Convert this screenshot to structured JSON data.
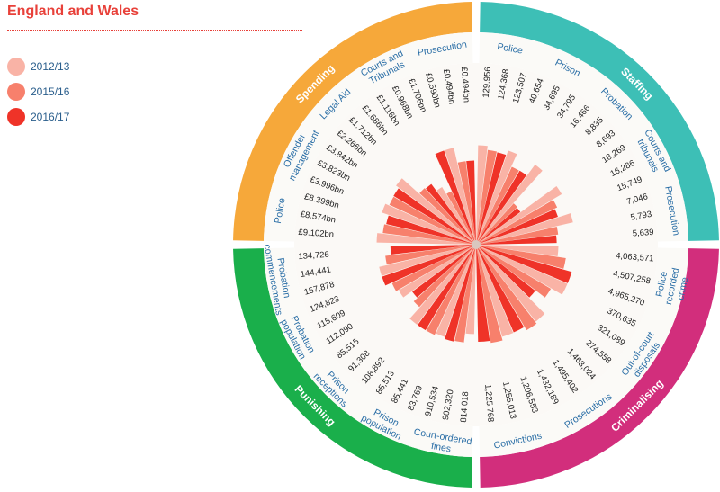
{
  "title": "England and Wales",
  "legend": [
    {
      "label": "2012/13",
      "color": "#f9b3a6"
    },
    {
      "label": "2015/16",
      "color": "#f7806c"
    },
    {
      "label": "2016/17",
      "color": "#ef3328"
    }
  ],
  "chart_data": {
    "type": "radial-bar",
    "series": [
      {
        "name": "2012/13",
        "color": "#f9b3a6"
      },
      {
        "name": "2015/16",
        "color": "#f7806c"
      },
      {
        "name": "2016/17",
        "color": "#ef3328"
      }
    ],
    "sections": [
      {
        "name": "Staffing",
        "color": "#3dbfb6",
        "categories": [
          {
            "label": "Police",
            "values": [
              "129,956",
              "124,368",
              "123,507"
            ],
            "nums": [
              129956,
              124368,
              123507
            ]
          },
          {
            "label": "Prison",
            "values": [
              "40,654",
              "34,695",
              "34,795"
            ],
            "nums": [
              40654,
              34695,
              34795
            ]
          },
          {
            "label": "Probation",
            "values": [
              "16,466",
              "8,835",
              "8,693"
            ],
            "nums": [
              16466,
              8835,
              8693
            ]
          },
          {
            "label": "Courts and tribunals",
            "values": [
              "18,269",
              "16,286",
              "15,749"
            ],
            "nums": [
              18269,
              16286,
              15749
            ]
          },
          {
            "label": "Prosecution",
            "values": [
              "7,046",
              "5,793",
              "5,639"
            ],
            "nums": [
              7046,
              5793,
              5639
            ]
          }
        ]
      },
      {
        "name": "Criminalising",
        "color": "#d22e7c",
        "categories": [
          {
            "label": "Police recorded crime",
            "values": [
              "4,063,571",
              "4,507,258",
              "4,965,270"
            ],
            "nums": [
              4063571,
              4507258,
              4965270
            ]
          },
          {
            "label": "Out-of-court disposals",
            "values": [
              "370,635",
              "321,089",
              "274,558"
            ],
            "nums": [
              370635,
              321089,
              274558
            ]
          },
          {
            "label": "Prosecutions",
            "values": [
              "1,463,024",
              "1,495,402",
              "1,432,189"
            ],
            "nums": [
              1463024,
              1495402,
              1432189
            ]
          },
          {
            "label": "Convictions",
            "values": [
              "1,206,553",
              "1,255,013",
              "1,225,768"
            ],
            "nums": [
              1206553,
              1255013,
              1225768
            ]
          }
        ]
      },
      {
        "name": "Punishing",
        "color": "#1aaf4b",
        "categories": [
          {
            "label": "Court-ordered fines",
            "values": [
              "814,018",
              "902,320",
              "910,534"
            ],
            "nums": [
              814018,
              902320,
              910534
            ]
          },
          {
            "label": "Prison population",
            "values": [
              "83,769",
              "85,441",
              "85,513"
            ],
            "nums": [
              83769,
              85441,
              85513
            ]
          },
          {
            "label": "Prison receptions",
            "values": [
              "108,892",
              "91,308",
              "85,515"
            ],
            "nums": [
              108892,
              91308,
              85515
            ]
          },
          {
            "label": "Probation population",
            "values": [
              "112,090",
              "115,609",
              "124,823"
            ],
            "nums": [
              112090,
              115609,
              124823
            ]
          },
          {
            "label": "Probation commencements",
            "values": [
              "157,878",
              "144,441",
              "134,726"
            ],
            "nums": [
              157878,
              144441,
              134726
            ]
          }
        ]
      },
      {
        "name": "Spending",
        "color": "#f6a83a",
        "categories": [
          {
            "label": "Police",
            "values": [
              "£9.102bn",
              "£8.574bn",
              "£8.399bn"
            ],
            "nums": [
              9.102,
              8.574,
              8.399
            ]
          },
          {
            "label": "Offender management",
            "values": [
              "£3.996bn",
              "£3.823bn",
              "£3.842bn"
            ],
            "nums": [
              3.996,
              3.823,
              3.842
            ]
          },
          {
            "label": "Legal Aid",
            "values": [
              "£2.266bn",
              "£1.712bn",
              "£1.686bn"
            ],
            "nums": [
              2.266,
              1.712,
              1.686
            ]
          },
          {
            "label": "Courts and Tribunals",
            "values": [
              "£1.116bn",
              "£0.968bn",
              "£1.706bn"
            ],
            "nums": [
              1.116,
              0.968,
              1.706
            ]
          },
          {
            "label": "Prosecution",
            "values": [
              "£0.590bn",
              "£0.494bn",
              "£0.494bn"
            ],
            "nums": [
              0.59,
              0.494,
              0.494
            ]
          }
        ]
      }
    ]
  }
}
